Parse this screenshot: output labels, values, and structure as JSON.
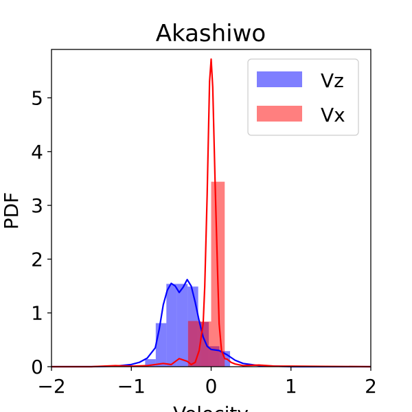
{
  "chart_data": {
    "type": "bar",
    "title": "Akashiwo",
    "xlabel": "Velocity",
    "ylabel": "PDF",
    "xlim": [
      -2,
      2
    ],
    "ylim": [
      0,
      5.9
    ],
    "xticks": [
      "−2",
      "−1",
      "0",
      "1",
      "2"
    ],
    "xtick_values": [
      -2,
      -1,
      0,
      1,
      2
    ],
    "yticks": [
      "0",
      "1",
      "2",
      "3",
      "4",
      "5"
    ],
    "ytick_values": [
      0,
      1,
      2,
      3,
      4,
      5
    ],
    "grid": false,
    "legend_position": "top-right",
    "series": [
      {
        "name": "Vz",
        "kind": "histogram",
        "color": "#0000ff",
        "bar_color": "#7f7fff",
        "bin_edges": [
          -0.827,
          -0.694,
          -0.561,
          -0.428,
          -0.295,
          -0.162,
          -0.029,
          0.104,
          0.237
        ],
        "values": [
          0.14,
          0.81,
          1.54,
          1.54,
          1.49,
          0.83,
          0.38,
          0.29
        ]
      },
      {
        "name": "Vx",
        "kind": "histogram",
        "color": "#ff0000",
        "bar_color": "#ff7f7f",
        "bin_edges": [
          -0.29,
          -0.13,
          0.0,
          0.17
        ],
        "values": [
          0.85,
          0.84,
          3.44
        ]
      }
    ],
    "lines": [
      {
        "name": "Vz",
        "kind": "kde",
        "color": "#0000ff",
        "x": [
          -2.0,
          -1.5,
          -1.2,
          -1.0,
          -0.9,
          -0.8,
          -0.7,
          -0.65,
          -0.6,
          -0.55,
          -0.5,
          -0.45,
          -0.4,
          -0.35,
          -0.3,
          -0.25,
          -0.2,
          -0.15,
          -0.1,
          -0.05,
          0.0,
          0.1,
          0.2,
          0.3,
          0.4,
          0.6,
          1.0,
          2.0
        ],
        "y": [
          0.0,
          0.0,
          0.01,
          0.04,
          0.08,
          0.16,
          0.35,
          0.7,
          1.15,
          1.42,
          1.55,
          1.5,
          1.38,
          1.48,
          1.62,
          1.5,
          1.2,
          0.85,
          0.55,
          0.38,
          0.32,
          0.3,
          0.22,
          0.12,
          0.06,
          0.02,
          0.0,
          0.0
        ]
      },
      {
        "name": "Vx",
        "kind": "kde",
        "color": "#ff0000",
        "x": [
          -2.0,
          -1.5,
          -1.2,
          -1.0,
          -0.8,
          -0.6,
          -0.5,
          -0.4,
          -0.3,
          -0.25,
          -0.2,
          -0.15,
          -0.1,
          -0.08,
          -0.05,
          -0.02,
          0.0,
          0.02,
          0.05,
          0.08,
          0.1,
          0.13,
          0.17,
          0.2,
          0.25,
          0.3,
          0.4,
          0.6,
          0.8,
          1.0,
          2.0
        ],
        "y": [
          0.0,
          0.0,
          0.02,
          0.01,
          0.02,
          0.06,
          0.04,
          0.15,
          0.1,
          0.04,
          0.08,
          0.3,
          0.8,
          1.5,
          3.2,
          5.3,
          5.72,
          5.2,
          3.4,
          1.8,
          0.8,
          0.3,
          0.15,
          0.14,
          0.08,
          0.05,
          0.02,
          0.03,
          0.01,
          0.01,
          0.0
        ]
      }
    ]
  }
}
